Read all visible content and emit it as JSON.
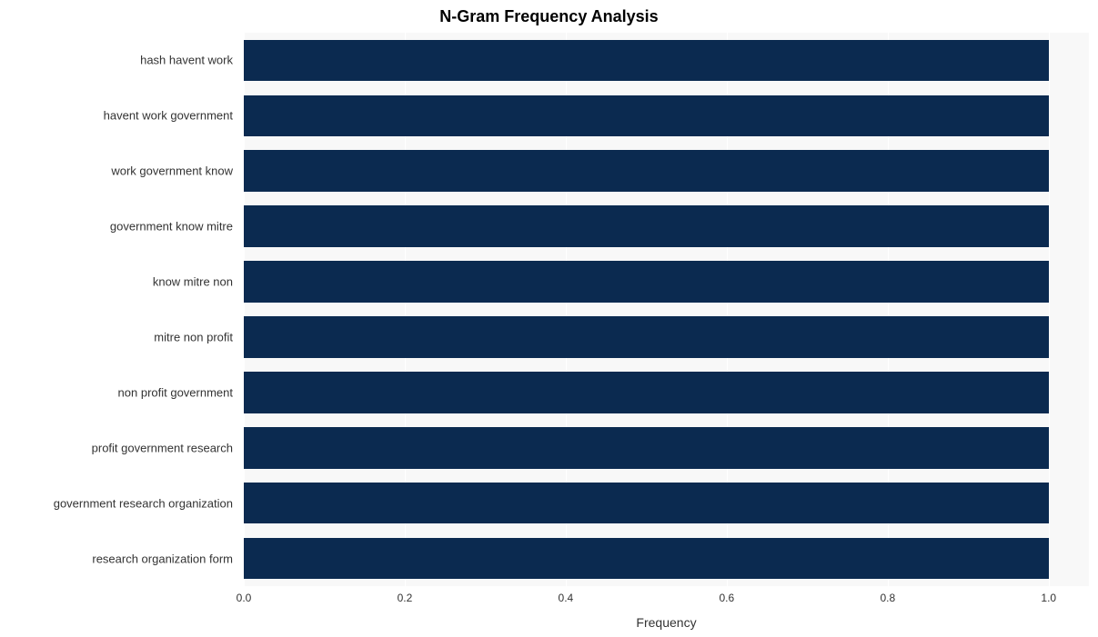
{
  "chart": {
    "type": "horizontal-bar",
    "title": "N-Gram Frequency Analysis",
    "title_fontsize": 18,
    "title_fontweight": "bold",
    "title_color": "#000000",
    "xlabel": "Frequency",
    "xlabel_fontsize": 14,
    "xlabel_color": "#333333",
    "label_fontsize": 13,
    "label_color": "#333333",
    "tick_fontsize": 12,
    "tick_color": "#333333",
    "background_color": "#ffffff",
    "plot_background_color": "#f8f8f8",
    "grid_color": "#ffffff",
    "bar_color": "#0b2a50",
    "bar_height_ratio": 0.75,
    "xlim": [
      0.0,
      1.05
    ],
    "xticks": [
      0.0,
      0.2,
      0.4,
      0.6,
      0.8,
      1.0
    ],
    "xtick_labels": [
      "0.0",
      "0.2",
      "0.4",
      "0.6",
      "0.8",
      "1.0"
    ],
    "categories": [
      "hash havent work",
      "havent work government",
      "work government know",
      "government know mitre",
      "know mitre non",
      "mitre non profit",
      "non profit government",
      "profit government research",
      "government research organization",
      "research organization form"
    ],
    "values": [
      1.0,
      1.0,
      1.0,
      1.0,
      1.0,
      1.0,
      1.0,
      1.0,
      1.0,
      1.0
    ]
  }
}
